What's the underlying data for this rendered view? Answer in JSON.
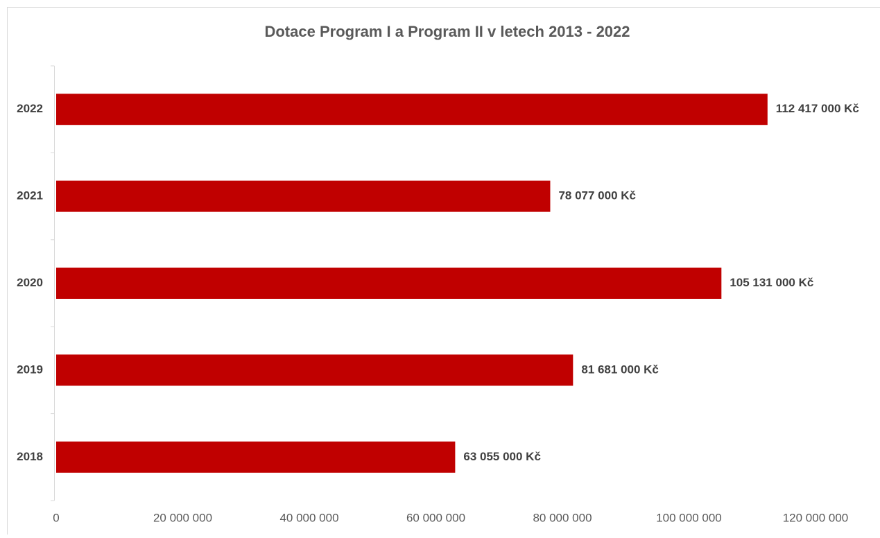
{
  "chart_data": {
    "type": "bar",
    "orientation": "horizontal",
    "title": "Dotace Program I a Program II v letech 2013 - 2022",
    "categories": [
      "2022",
      "2021",
      "2020",
      "2019",
      "2018"
    ],
    "values": [
      112417000,
      78077000,
      105131000,
      81681000,
      63055000
    ],
    "value_labels": [
      "112 417 000 Kč",
      "78 077 000 Kč",
      "105 131 000 Kč",
      "81 681 000 Kč",
      "63 055 000 Kč"
    ],
    "color": "#c00000",
    "xlim": [
      0,
      120000000
    ],
    "xticks": [
      0,
      {
        "value": 20000000,
        "label": "20 000 000"
      },
      {
        "value": 40000000,
        "label": "40 000 000"
      },
      {
        "value": 60000000,
        "label": "60 000 000"
      },
      {
        "value": 80000000,
        "label": "80 000 000"
      },
      {
        "value": 100000000,
        "label": "100 000 000"
      },
      {
        "value": 120000000,
        "label": "120 000 000"
      }
    ],
    "grid": false
  }
}
